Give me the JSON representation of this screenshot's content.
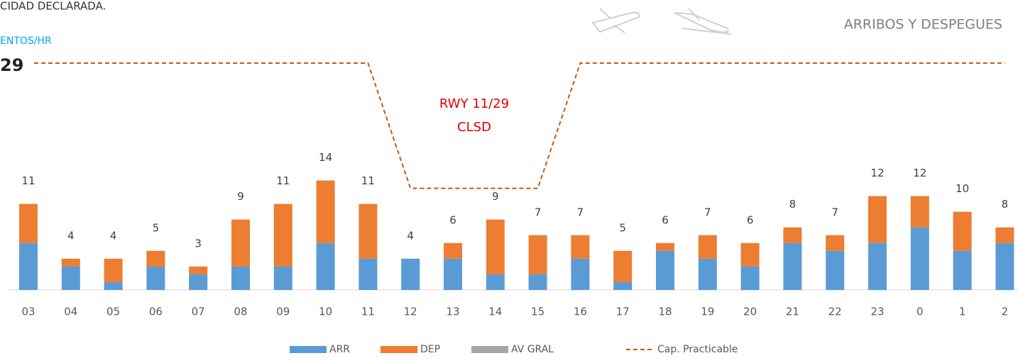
{
  "header": {
    "left_title": "CIDAD DECLARADA.",
    "unit": "ENTOS/HR",
    "right_title": "ARRIBOS Y DESPEGUES"
  },
  "chart_data": {
    "type": "bar",
    "categories": [
      "03",
      "04",
      "05",
      "06",
      "07",
      "08",
      "09",
      "10",
      "11",
      "12",
      "13",
      "14",
      "15",
      "16",
      "17",
      "18",
      "19",
      "20",
      "21",
      "22",
      "23",
      "0",
      "1",
      "2"
    ],
    "series": [
      {
        "name": "ARR",
        "color": "#5b9bd5",
        "values": [
          6,
          3,
          1,
          3,
          2,
          3,
          3,
          6,
          4,
          4,
          4,
          2,
          2,
          4,
          1,
          5,
          4,
          3,
          6,
          5,
          6,
          8,
          5,
          6
        ]
      },
      {
        "name": "DEP",
        "color": "#ed7d31",
        "values": [
          5,
          1,
          3,
          2,
          1,
          6,
          8,
          8,
          7,
          0,
          2,
          7,
          5,
          3,
          4,
          1,
          3,
          3,
          2,
          2,
          6,
          4,
          5,
          2
        ]
      },
      {
        "name": "AV GRAL",
        "color": "#a5a5a5",
        "values": [
          0,
          0,
          0,
          0,
          0,
          0,
          0,
          0,
          0,
          0,
          0,
          0,
          0,
          0,
          0,
          0,
          0,
          0,
          0,
          0,
          0,
          0,
          0,
          0
        ]
      },
      {
        "name": "Cap. Practicable",
        "color": "#c55a11",
        "style": "dashed",
        "values": [
          29,
          29,
          29,
          29,
          29,
          29,
          29,
          29,
          29,
          13,
          13,
          13,
          13,
          29,
          29,
          29,
          29,
          29,
          29,
          29,
          29,
          29,
          29,
          29
        ]
      }
    ],
    "totals": [
      11,
      4,
      4,
      5,
      3,
      9,
      11,
      14,
      11,
      4,
      6,
      9,
      7,
      7,
      5,
      6,
      7,
      6,
      8,
      7,
      12,
      12,
      10,
      8
    ],
    "annotation": [
      "RWY 11/29",
      "CLSD"
    ],
    "ylim": [
      0,
      30
    ]
  }
}
